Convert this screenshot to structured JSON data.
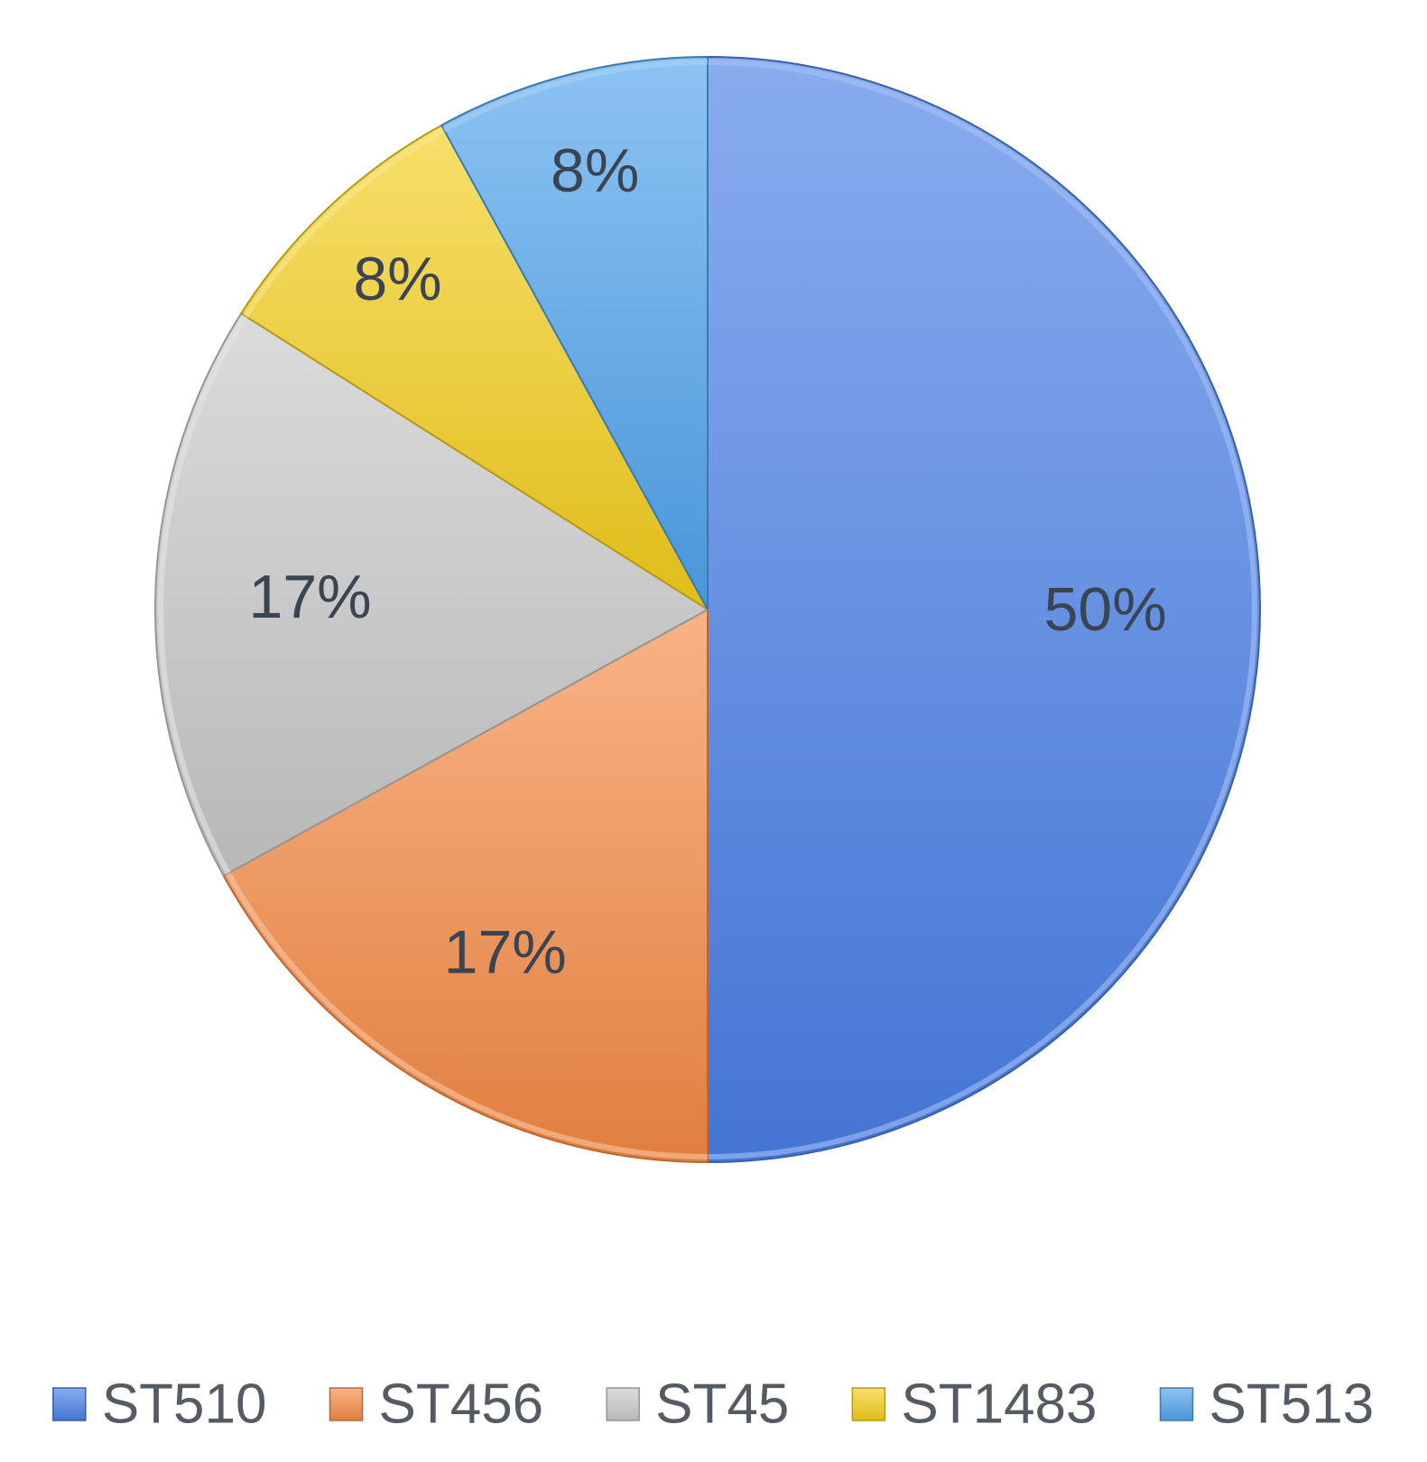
{
  "chart_data": {
    "type": "pie",
    "title": "",
    "legend_position": "bottom",
    "slices": [
      {
        "name": "ST510",
        "value": 50,
        "label": "50%",
        "color": "#4a7fe6"
      },
      {
        "name": "ST456",
        "value": 17,
        "label": "17%",
        "color": "#f58a45"
      },
      {
        "name": "ST45",
        "value": 17,
        "label": "17%",
        "color": "#c8c8c8"
      },
      {
        "name": "ST1483",
        "value": 8,
        "label": "8%",
        "color": "#f3cd1c"
      },
      {
        "name": "ST513",
        "value": 8,
        "label": "8%",
        "color": "#4fa3ec"
      }
    ]
  }
}
